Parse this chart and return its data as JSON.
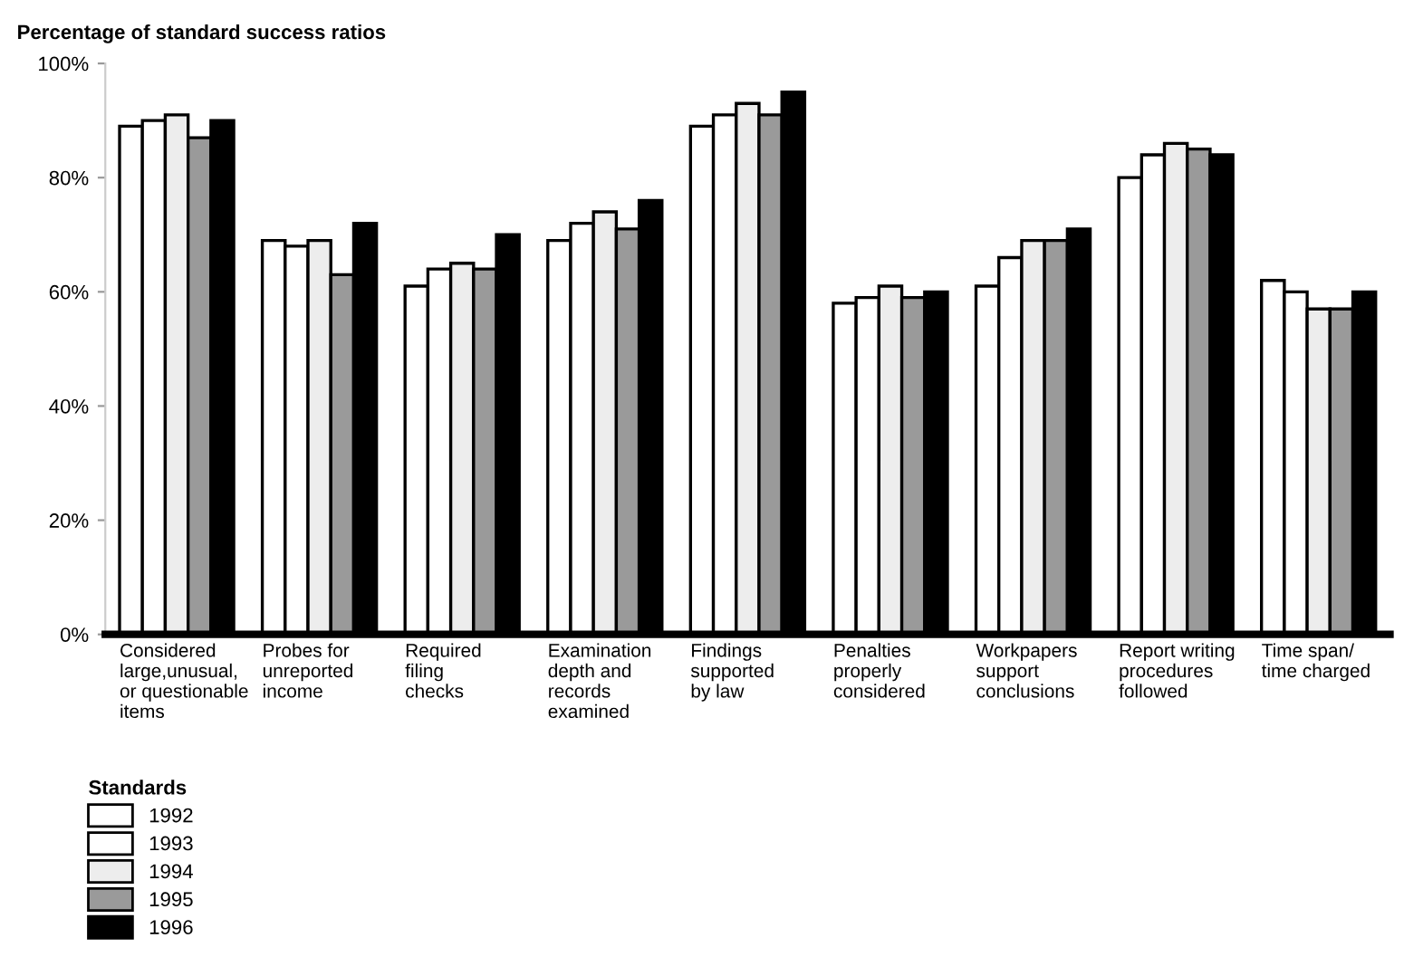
{
  "chart_data": {
    "type": "bar",
    "title": "Percentage of standard success ratios",
    "categories": [
      "Considered\nlarge,unusual,\nor questionable\nitems",
      "Probes for\nunreported\nincome",
      "Required\nfiling\nchecks",
      "Examination\ndepth and\nrecords\nexamined",
      "Findings\nsupported\nby law",
      "Penalties\nproperly\nconsidered",
      "Workpapers\nsupport\nconclusions",
      "Report writing\nprocedures\nfollowed",
      "Time span/\ntime charged"
    ],
    "series": [
      {
        "name": "1992",
        "color": "#ffffff",
        "values": [
          89,
          69,
          61,
          69,
          89,
          58,
          61,
          80,
          62
        ]
      },
      {
        "name": "1993",
        "color": "#ffffff",
        "values": [
          90,
          68,
          64,
          72,
          91,
          59,
          66,
          84,
          60
        ]
      },
      {
        "name": "1994",
        "color": "#ededed",
        "values": [
          91,
          69,
          65,
          74,
          93,
          61,
          69,
          86,
          57
        ]
      },
      {
        "name": "1995",
        "color": "#9a9a9a",
        "values": [
          87,
          63,
          64,
          71,
          91,
          59,
          69,
          85,
          57
        ]
      },
      {
        "name": "1996",
        "color": "#000000",
        "values": [
          90,
          72,
          70,
          76,
          95,
          60,
          71,
          84,
          60
        ]
      }
    ],
    "legend_title": "Standards",
    "legend": "bottom left",
    "ylim": [
      0,
      100
    ],
    "yticks": [
      {
        "value": 0,
        "label": "0%"
      },
      {
        "value": 20,
        "label": "20%"
      },
      {
        "value": 40,
        "label": "40%"
      },
      {
        "value": 60,
        "label": "60%"
      },
      {
        "value": 80,
        "label": "80%"
      },
      {
        "value": 100,
        "label": "100%"
      }
    ],
    "grid": false
  }
}
